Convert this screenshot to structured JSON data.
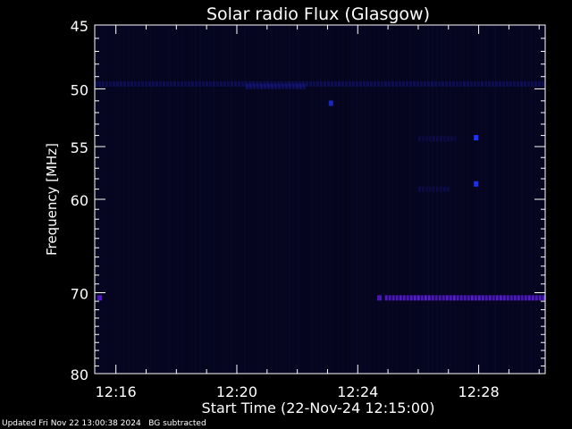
{
  "chart_data": {
    "type": "heatmap",
    "title": "Solar radio Flux (Glasgow)",
    "xlabel": "Start Time (22-Nov-24 12:15:00)",
    "ylabel": "Frequency [MHz]",
    "x_unit": "time",
    "x_start": "12:15:00",
    "x_range_min": [
      15.3,
      30.2
    ],
    "x_ticks": [
      "12:16",
      "12:20",
      "12:24",
      "12:28"
    ],
    "x_tick_values_min": [
      16,
      20,
      24,
      28
    ],
    "y_scale": "log",
    "y_range_mhz": [
      45,
      80
    ],
    "y_ticks": [
      45,
      50,
      55,
      60,
      70,
      80
    ],
    "colors": {
      "background": "#000000",
      "plot_background": "#05051f",
      "faint_stripes": "#0a0a2e",
      "band_50mhz": "#1a1a9a",
      "band_70mhz": "#5a1ad8",
      "bright_dot": "#2233ff",
      "text": "#ffffff"
    },
    "features": [
      {
        "kind": "band",
        "freq_mhz": 49.6,
        "t_start_min": 15.3,
        "t_end_min": 30.2,
        "intensity": 0.45
      },
      {
        "kind": "band",
        "freq_mhz": 49.8,
        "t_start_min": 20.3,
        "t_end_min": 22.2,
        "intensity": 0.6
      },
      {
        "kind": "band",
        "freq_mhz": 70.6,
        "t_start_min": 24.9,
        "t_end_min": 30.2,
        "intensity": 1.0
      },
      {
        "kind": "spot",
        "freq_mhz": 70.6,
        "t_min": 15.45,
        "intensity": 0.9
      },
      {
        "kind": "spot",
        "freq_mhz": 70.6,
        "t_min": 24.7,
        "intensity": 0.8
      },
      {
        "kind": "spot",
        "freq_mhz": 54.2,
        "t_min": 27.9,
        "intensity": 1.0
      },
      {
        "kind": "spot",
        "freq_mhz": 58.5,
        "t_min": 27.9,
        "intensity": 0.9
      },
      {
        "kind": "spot",
        "freq_mhz": 51.2,
        "t_min": 23.1,
        "intensity": 0.7
      },
      {
        "kind": "band",
        "freq_mhz": 54.3,
        "t_start_min": 26.0,
        "t_end_min": 27.2,
        "intensity": 0.3
      },
      {
        "kind": "band",
        "freq_mhz": 59.0,
        "t_start_min": 26.0,
        "t_end_min": 27.0,
        "intensity": 0.3
      }
    ],
    "grid": false,
    "legend": "none"
  },
  "footer": {
    "text": "Updated Fri Nov 22 13:00:38 2024   BG subtracted"
  }
}
